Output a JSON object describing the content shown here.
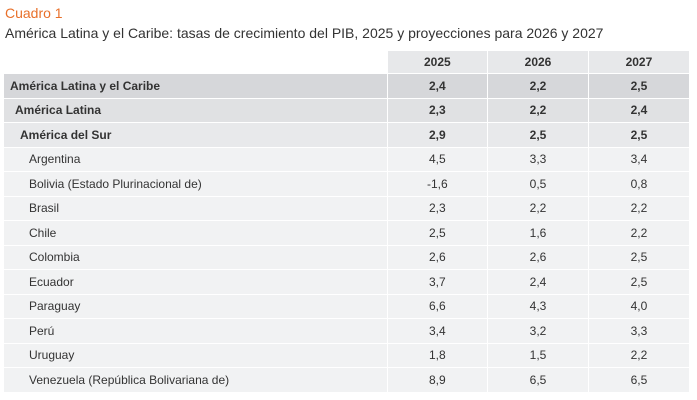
{
  "header": {
    "label": "Cuadro 1",
    "title": "América Latina y el Caribe: tasas de crecimiento del PIB, 2025 y proyecciones para 2026 y 2027"
  },
  "table": {
    "columns": [
      "2025",
      "2026",
      "2027"
    ],
    "rows": [
      {
        "name": "América Latina y el Caribe",
        "level": "lvl0",
        "values": [
          "2,4",
          "2,2",
          "2,5"
        ]
      },
      {
        "name": "América Latina",
        "level": "lvl1",
        "values": [
          "2,3",
          "2,2",
          "2,4"
        ]
      },
      {
        "name": "América del Sur",
        "level": "lvl2",
        "values": [
          "2,9",
          "2,5",
          "2,5"
        ]
      },
      {
        "name": "Argentina",
        "level": "country",
        "values": [
          "4,5",
          "3,3",
          "3,4"
        ]
      },
      {
        "name": "Bolivia (Estado Plurinacional de)",
        "level": "country",
        "values": [
          "-1,6",
          "0,5",
          "0,8"
        ]
      },
      {
        "name": "Brasil",
        "level": "country",
        "values": [
          "2,3",
          "2,2",
          "2,2"
        ]
      },
      {
        "name": "Chile",
        "level": "country",
        "values": [
          "2,5",
          "1,6",
          "2,2"
        ]
      },
      {
        "name": "Colombia",
        "level": "country",
        "values": [
          "2,6",
          "2,6",
          "2,5"
        ]
      },
      {
        "name": "Ecuador",
        "level": "country",
        "values": [
          "3,7",
          "2,4",
          "2,5"
        ]
      },
      {
        "name": "Paraguay",
        "level": "country",
        "values": [
          "6,6",
          "4,3",
          "4,0"
        ]
      },
      {
        "name": "Perú",
        "level": "country",
        "values": [
          "3,4",
          "3,2",
          "3,3"
        ]
      },
      {
        "name": "Uruguay",
        "level": "country",
        "values": [
          "1,8",
          "1,5",
          "2,2"
        ]
      },
      {
        "name": "Venezuela (República Bolivariana de)",
        "level": "country",
        "values": [
          "8,9",
          "6,5",
          "6,5"
        ]
      }
    ]
  }
}
